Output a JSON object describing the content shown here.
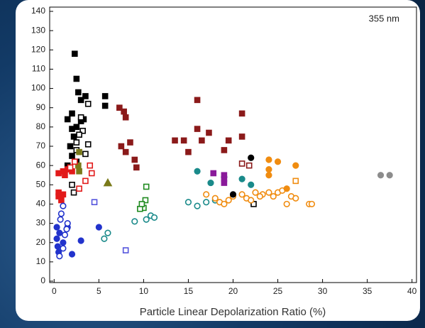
{
  "chart_data": {
    "type": "scatter",
    "annotation": "355 nm",
    "x_label": "Particle Linear Depolarization Ratio (%)",
    "xlim": [
      -0.5,
      40.5
    ],
    "ylim": [
      0,
      140
    ],
    "xticks": [
      0,
      5,
      10,
      15,
      20,
      25,
      30,
      35,
      40
    ],
    "yticks": [
      0,
      10,
      20,
      30,
      40,
      50,
      60,
      70,
      80,
      90,
      100,
      110,
      120,
      130,
      140
    ],
    "series": [
      {
        "color": "#000000",
        "marker": "square",
        "filled": true,
        "x": [
          1.5,
          2,
          2.3,
          2.5,
          2.7,
          3,
          3.5,
          2,
          2.5,
          3,
          3.3,
          5.7,
          5.7,
          2.2,
          1.8,
          2,
          2.5,
          1.5
        ],
        "values": [
          84,
          87,
          118,
          105,
          98,
          94,
          96,
          79,
          80,
          83,
          84,
          96,
          91,
          75,
          70,
          65,
          62,
          60
        ]
      },
      {
        "color": "#000000",
        "marker": "square",
        "filled": false,
        "x": [
          3.8,
          3,
          3.2,
          2.8,
          3.8,
          2.5,
          3.5,
          2.5,
          2,
          2.2,
          22.3
        ],
        "values": [
          92,
          85,
          78,
          76,
          71,
          72,
          66,
          68,
          50,
          46,
          40
        ]
      },
      {
        "color": "#7a7a1a",
        "marker": "square",
        "filled": true,
        "x": [
          2.8,
          2.7,
          2.8
        ],
        "values": [
          67,
          60,
          57
        ]
      },
      {
        "color": "#7a7a1a",
        "marker": "triangle",
        "filled": true,
        "x": [
          6
        ],
        "values": [
          51
        ]
      },
      {
        "color": "#8b1a1a",
        "marker": "square",
        "filled": true,
        "x": [
          7.3,
          7.8,
          8,
          7.5,
          8,
          8.5,
          9,
          9.2,
          13.5,
          14.5,
          16,
          16,
          17.3,
          16.5,
          19.5,
          21,
          21,
          19,
          15
        ],
        "values": [
          90,
          88,
          85,
          70,
          67,
          72,
          63,
          59,
          73,
          73,
          94,
          79,
          77,
          73,
          73,
          87,
          75,
          68,
          67
        ]
      },
      {
        "color": "#8b1a1a",
        "marker": "square",
        "filled": false,
        "x": [
          21,
          21.8
        ],
        "values": [
          61,
          60
        ]
      },
      {
        "color": "#e21a1a",
        "marker": "square",
        "filled": true,
        "x": [
          0.5,
          1,
          1.5,
          2,
          0.5,
          0.8,
          1,
          1.2,
          0.5
        ],
        "values": [
          56,
          57,
          58,
          57,
          44,
          42,
          45,
          55,
          46
        ]
      },
      {
        "color": "#e21a1a",
        "marker": "square",
        "filled": false,
        "x": [
          2.8,
          4,
          4.2,
          3.5,
          2.3,
          1.8
        ],
        "values": [
          48,
          60,
          56,
          52,
          62,
          59
        ]
      },
      {
        "color": "#2233cc",
        "marker": "circle",
        "filled": true,
        "x": [
          0.3,
          0.4,
          0.5,
          0.6,
          0.3,
          1.5,
          2,
          3,
          5,
          1
        ],
        "values": [
          22,
          18,
          15,
          25,
          28,
          28,
          14,
          21,
          28,
          20
        ]
      },
      {
        "color": "#2233cc",
        "marker": "circle",
        "filled": false,
        "x": [
          0.8,
          1,
          1.5,
          1.2,
          1,
          0.6,
          1.4,
          0.7
        ],
        "values": [
          35,
          39,
          30,
          24,
          17,
          13,
          27,
          32
        ]
      },
      {
        "color": "#5555dd",
        "marker": "square",
        "filled": false,
        "x": [
          4.5,
          8
        ],
        "values": [
          41,
          16
        ]
      },
      {
        "color": "#1f8a1f",
        "marker": "square",
        "filled": false,
        "x": [
          10.3,
          10.2,
          10,
          9.6,
          9.8
        ],
        "values": [
          49,
          42,
          38,
          37.5,
          40
        ]
      },
      {
        "color": "#1a8a8a",
        "marker": "circle",
        "filled": false,
        "x": [
          9,
          10.3,
          10.8,
          11.2,
          6,
          5.6,
          15,
          16,
          17,
          18
        ],
        "values": [
          31,
          32,
          34,
          33,
          25,
          22,
          41,
          39,
          41,
          42
        ]
      },
      {
        "color": "#1a8a8a",
        "marker": "circle",
        "filled": true,
        "x": [
          16,
          17.5,
          19,
          21,
          22
        ],
        "values": [
          57,
          51,
          54,
          53,
          50
        ]
      },
      {
        "color": "#8a1a9a",
        "marker": "square",
        "filled": true,
        "x": [
          17.8,
          19,
          19,
          19
        ],
        "values": [
          56,
          55,
          53,
          51
        ]
      },
      {
        "color": "#f08c10",
        "marker": "circle",
        "filled": false,
        "x": [
          17,
          18,
          18.5,
          19,
          19.5,
          20,
          21,
          21.5,
          22,
          23.3,
          24,
          24.5,
          25,
          25.5,
          26.5,
          27,
          28.5,
          28.8,
          26,
          22.5,
          23
        ],
        "values": [
          45,
          43,
          41,
          40,
          42,
          44,
          45,
          43,
          42,
          45,
          46,
          44,
          46,
          47,
          44,
          43,
          40,
          40,
          40,
          46,
          44
        ]
      },
      {
        "color": "#f08c10",
        "marker": "circle",
        "filled": true,
        "x": [
          24,
          24,
          24,
          25,
          26,
          27
        ],
        "values": [
          63,
          58,
          55,
          62,
          48,
          60
        ]
      },
      {
        "color": "#f08c10",
        "marker": "square",
        "filled": false,
        "x": [
          27
        ],
        "values": [
          52
        ]
      },
      {
        "color": "#8c8c8c",
        "marker": "circle",
        "filled": true,
        "x": [
          36.5,
          37.5
        ],
        "values": [
          55,
          55
        ]
      },
      {
        "color": "#000000",
        "marker": "circle",
        "filled": true,
        "x": [
          22,
          20
        ],
        "values": [
          64,
          45
        ]
      }
    ]
  }
}
